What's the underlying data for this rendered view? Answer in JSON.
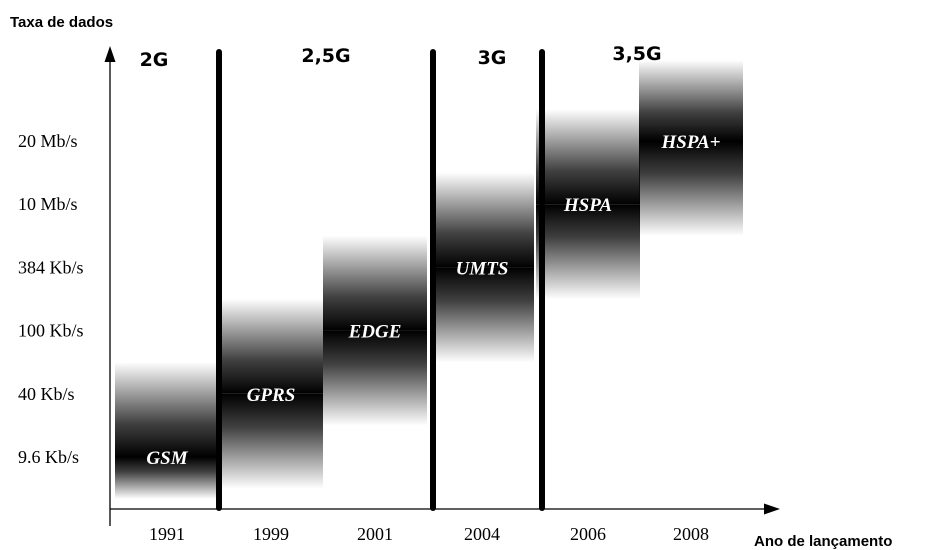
{
  "chart_data": {
    "type": "bar",
    "ylabel": "Taxa de dados",
    "xlabel": "Ano de lançamento",
    "y_ticks": [
      "9.6 Kb/s",
      "40 Kb/s",
      "100 Kb/s",
      "384 Kb/s",
      "10 Mb/s",
      "20 Mb/s"
    ],
    "x_ticks": [
      "1991",
      "1999",
      "2001",
      "2004",
      "2006",
      "2008"
    ],
    "generations": [
      "2G",
      "2,5G",
      "3G",
      "3,5G"
    ],
    "bands": [
      {
        "label": "GSM",
        "year": "1991",
        "rate": "9.6 Kb/s"
      },
      {
        "label": "GPRS",
        "year": "1999",
        "rate": "40 Kb/s"
      },
      {
        "label": "EDGE",
        "year": "2001",
        "rate": "100 Kb/s"
      },
      {
        "label": "UMTS",
        "year": "2004",
        "rate": "384 Kb/s"
      },
      {
        "label": "HSPA",
        "year": "2006",
        "rate": "10 Mb/s"
      },
      {
        "label": "HSPA+",
        "year": "2008",
        "rate": "20 Mb/s"
      }
    ],
    "colors": {
      "band": "#000000",
      "divider": "#000000",
      "axis": "#000000",
      "band_text": "#ffffff"
    },
    "grid": false
  }
}
